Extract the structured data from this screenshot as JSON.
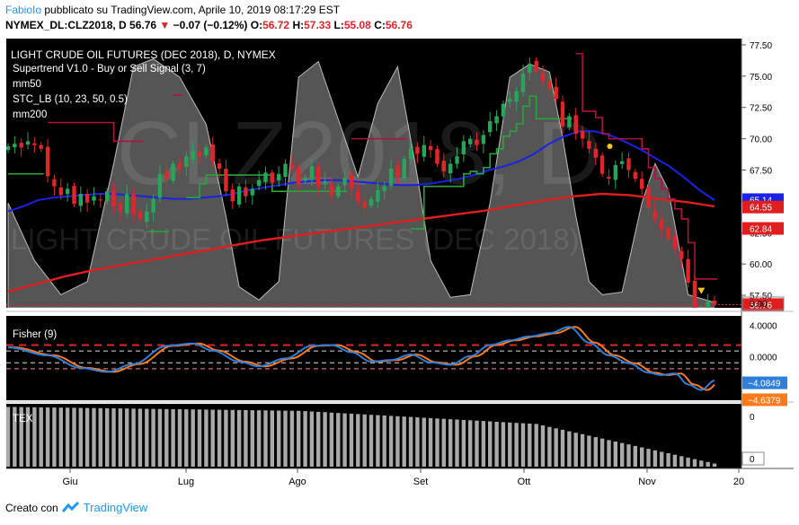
{
  "header": {
    "author": "FabioIo",
    "published_text": "pubblicato su TradingView.com, Aprile 10, 2019 08:17:29 EST",
    "symbol": "NYMEX_DL:CLZ2018, D",
    "last": "56.76",
    "change": "−0.07 (−0.12%)",
    "open_label": "O:",
    "open": "56.72",
    "high_label": "H:",
    "high": "57.33",
    "low_label": "L:",
    "low": "55.08",
    "close_label": "C:",
    "close": "56.76"
  },
  "main_pane": {
    "title": "LIGHT CRUDE OIL FUTURES (DEC 2018), D, NYMEX",
    "indicators": [
      "Supertrend V1.0 - Buy or Sell Signal (3, 7)",
      "mm50",
      "STC_LB (10, 23, 50, 0.5)",
      "mm200"
    ],
    "watermark_big": "CLZ2018, D",
    "watermark_small": "LIGHT CRUDE OIL FUTURES (DEC 2018)"
  },
  "fisher_pane": {
    "title": "Fisher (9)"
  },
  "volume_pane": {
    "title": "TEX"
  },
  "footer": {
    "created_with": "Creato con",
    "brand": "TradingView"
  },
  "colors": {
    "up": "#26a65b",
    "down": "#e0262a",
    "mm50": "#1a22e6",
    "mm200": "#e01e1e",
    "supertrend_up": "#28a738",
    "supertrend_down": "#b0123e",
    "fisher": "#2e7fd9",
    "fisher_trigger": "#ff7a1a",
    "stc": "#8a8a8a"
  },
  "chart_data": {
    "type": "candlestick",
    "x_axis": {
      "ticks": [
        "Giu",
        "Lug",
        "Ago",
        "Set",
        "Ott",
        "Nov",
        "20"
      ]
    },
    "price_axis": {
      "ylim": [
        56.5,
        78.0
      ],
      "ticks": [
        77.5,
        75.0,
        72.5,
        70.0,
        67.5,
        65.0,
        62.5,
        60.0,
        57.5
      ]
    },
    "stc_axis": {
      "label": "0.00",
      "ylim": [
        0,
        100
      ]
    },
    "price_labels": [
      {
        "text": "65.14",
        "value": 65.14,
        "color": "#1a22e6"
      },
      {
        "text": "64.55",
        "value": 64.55,
        "color": "#e01e1e"
      },
      {
        "text": "62.84",
        "value": 62.84,
        "color": "#e01e1e"
      },
      {
        "text": "56.76",
        "value": 56.76,
        "color": "#e01e1e"
      }
    ],
    "candles_close": [
      69.4,
      69.6,
      69.3,
      69.8,
      69.5,
      69.2,
      67.0,
      66.2,
      65.5,
      66.0,
      64.8,
      65.6,
      64.9,
      65.4,
      65.1,
      65.8,
      64.6,
      64.2,
      65.6,
      64.0,
      63.6,
      64.2,
      65.2,
      67.2,
      66.8,
      68.0,
      67.6,
      68.6,
      69.0,
      68.6,
      69.3,
      68.2,
      67.6,
      65.8,
      65.0,
      66.2,
      65.4,
      66.0,
      66.7,
      67.3,
      66.5,
      67.2,
      68.0,
      67.6,
      66.4,
      66.9,
      67.8,
      66.2,
      66.6,
      65.5,
      66.2,
      66.9,
      66.0,
      65.0,
      64.5,
      65.2,
      65.9,
      66.2,
      67.6,
      67.0,
      68.4,
      69.2,
      68.8,
      69.5,
      69.1,
      68.0,
      67.4,
      68.0,
      68.6,
      69.8,
      70.0,
      69.5,
      70.3,
      71.4,
      71.8,
      72.8,
      73.2,
      73.8,
      75.2,
      76.0,
      75.4,
      74.6,
      74.0,
      73.2,
      71.0,
      71.8,
      70.4,
      70.0,
      69.2,
      68.5,
      67.2,
      66.8,
      67.9,
      68.2,
      67.5,
      66.8,
      66.0,
      64.5,
      63.6,
      62.8,
      62.0,
      61.2,
      60.4,
      58.5,
      55.6,
      56.5,
      57.0,
      56.8
    ],
    "mm50": [
      64.2,
      64.6,
      65.1,
      65.3,
      65.4,
      65.5,
      65.6,
      65.6,
      65.5,
      65.4,
      65.3,
      65.2,
      65.2,
      65.3,
      65.4,
      65.6,
      65.9,
      66.1,
      66.3,
      66.5,
      66.6,
      66.7,
      66.7,
      66.6,
      66.5,
      66.4,
      66.3,
      66.3,
      66.4,
      66.6,
      66.8,
      67.1,
      67.5,
      67.8,
      68.2,
      68.8,
      69.6,
      70.2,
      70.6,
      70.6,
      70.3,
      69.8,
      69.2,
      68.5,
      67.8,
      66.9,
      65.9,
      65.1
    ],
    "mm200": [
      57.8,
      58.4,
      59.0,
      59.5,
      59.9,
      60.3,
      60.7,
      61.1,
      61.5,
      61.9,
      62.2,
      62.5,
      62.8,
      63.1,
      63.4,
      63.7,
      64.0,
      64.3,
      64.7,
      65.1,
      65.4,
      65.6,
      65.5,
      65.2,
      64.95,
      64.6
    ]
  }
}
